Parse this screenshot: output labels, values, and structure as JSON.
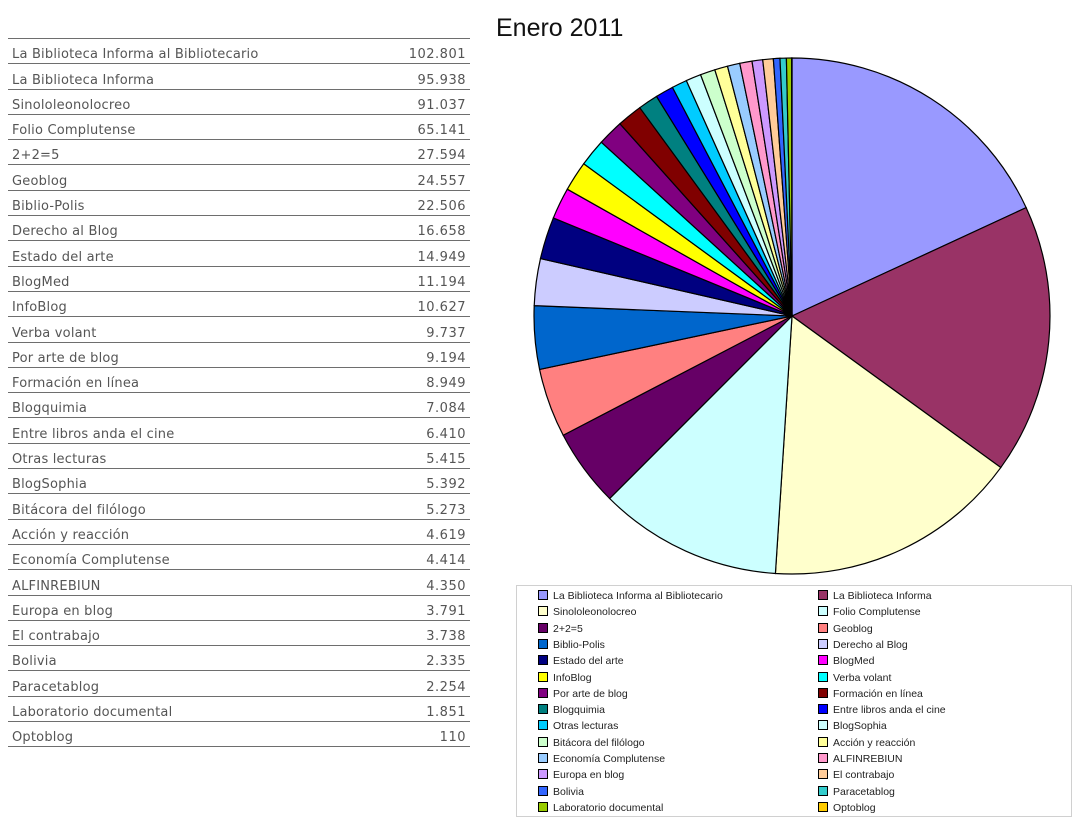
{
  "chart_data": {
    "type": "pie",
    "title": "Enero 2011",
    "legend_position": "bottom",
    "series": [
      {
        "name": "La Biblioteca Informa al Bibliotecario",
        "value_label": "102.801",
        "value": 102801,
        "color": "#9999ff"
      },
      {
        "name": "La Biblioteca Informa",
        "value_label": "95.938",
        "value": 95938,
        "color": "#993366"
      },
      {
        "name": "Sinololeonolocreo",
        "value_label": "91.037",
        "value": 91037,
        "color": "#ffffcc"
      },
      {
        "name": "Folio Complutense",
        "value_label": "65.141",
        "value": 65141,
        "color": "#ccffff"
      },
      {
        "name": "2+2=5",
        "value_label": "27.594",
        "value": 27594,
        "color": "#660066"
      },
      {
        "name": "Geoblog",
        "value_label": "24.557",
        "value": 24557,
        "color": "#ff8080"
      },
      {
        "name": "Biblio-Polis",
        "value_label": "22.506",
        "value": 22506,
        "color": "#0066cc"
      },
      {
        "name": "Derecho al Blog",
        "value_label": "16.658",
        "value": 16658,
        "color": "#ccccff"
      },
      {
        "name": "Estado del arte",
        "value_label": "14.949",
        "value": 14949,
        "color": "#000080"
      },
      {
        "name": "BlogMed",
        "value_label": "11.194",
        "value": 11194,
        "color": "#ff00ff"
      },
      {
        "name": "InfoBlog",
        "value_label": "10.627",
        "value": 10627,
        "color": "#ffff00"
      },
      {
        "name": "Verba volant",
        "value_label": "9.737",
        "value": 9737,
        "color": "#00ffff"
      },
      {
        "name": "Por arte de blog",
        "value_label": "9.194",
        "value": 9194,
        "color": "#800080"
      },
      {
        "name": "Formación en línea",
        "value_label": "8.949",
        "value": 8949,
        "color": "#800000"
      },
      {
        "name": "Blogquimia",
        "value_label": "7.084",
        "value": 7084,
        "color": "#008080"
      },
      {
        "name": "Entre libros anda el cine",
        "value_label": "6.410",
        "value": 6410,
        "color": "#0000ff"
      },
      {
        "name": "Otras lecturas",
        "value_label": "5.415",
        "value": 5415,
        "color": "#00ccff"
      },
      {
        "name": "BlogSophia",
        "value_label": "5.392",
        "value": 5392,
        "color": "#ccffff"
      },
      {
        "name": "Bitácora del filólogo",
        "value_label": "5.273",
        "value": 5273,
        "color": "#ccffcc"
      },
      {
        "name": "Acción y reacción",
        "value_label": "4.619",
        "value": 4619,
        "color": "#ffff99"
      },
      {
        "name": "Economía Complutense",
        "value_label": "4.414",
        "value": 4414,
        "color": "#99ccff"
      },
      {
        "name": "ALFINREBIUN",
        "value_label": "4.350",
        "value": 4350,
        "color": "#ff99cc"
      },
      {
        "name": "Europa en blog",
        "value_label": "3.791",
        "value": 3791,
        "color": "#cc99ff"
      },
      {
        "name": "El contrabajo",
        "value_label": "3.738",
        "value": 3738,
        "color": "#ffcc99"
      },
      {
        "name": "Bolivia",
        "value_label": "2.335",
        "value": 2335,
        "color": "#3366ff"
      },
      {
        "name": "Paracetablog",
        "value_label": "2.254",
        "value": 2254,
        "color": "#33cccc"
      },
      {
        "name": "Laboratorio documental",
        "value_label": "1.851",
        "value": 1851,
        "color": "#99cc00"
      },
      {
        "name": "Optoblog",
        "value_label": "110",
        "value": 110,
        "color": "#ffcc00"
      }
    ]
  }
}
